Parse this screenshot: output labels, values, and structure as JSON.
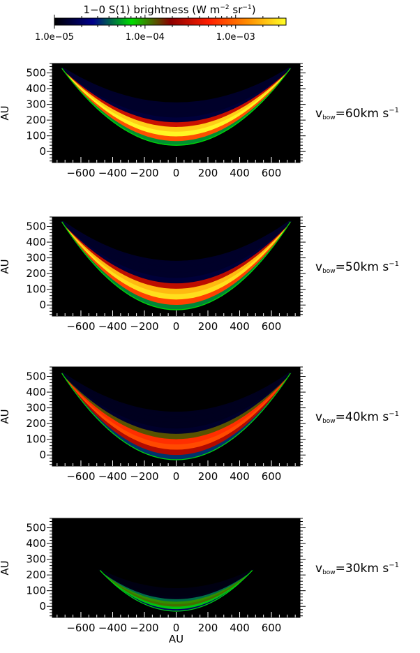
{
  "colorbar": {
    "title": "1−0 S(1) brightness (W m",
    "title_exp1": "−2",
    "title_mid": " sr",
    "title_exp2": "−1",
    "title_end": ")",
    "scale": "log",
    "range": [
      1e-05,
      0.0036
    ],
    "tick_labels": [
      "1.0e−05",
      "1.0e−04",
      "1.0e−03"
    ],
    "tick_values": [
      1e-05,
      0.0001,
      0.001
    ],
    "colors": [
      "#000000",
      "#00008c",
      "#00dc00",
      "#8c0000",
      "#ff1e00",
      "#ff8c00",
      "#ffff28"
    ]
  },
  "chart_data": [
    {
      "type": "heatmap",
      "title": "",
      "xlabel": "",
      "ylabel": "AU",
      "xlim": [
        -780,
        780
      ],
      "ylim": [
        -70,
        560
      ],
      "x_ticks": [
        -600,
        -400,
        -200,
        0,
        200,
        400,
        600
      ],
      "y_ticks": [
        0,
        100,
        200,
        300,
        400,
        500
      ],
      "label_prefix": "v",
      "label_sub": "bow",
      "label_value": "=60km  s",
      "label_exp": "−1",
      "bow": {
        "x_half_width": 720,
        "y_apex": 40,
        "y_top": 530
      },
      "peak_brightness": 0.0036
    },
    {
      "type": "heatmap",
      "title": "",
      "xlabel": "",
      "ylabel": "AU",
      "xlim": [
        -780,
        780
      ],
      "ylim": [
        -70,
        560
      ],
      "x_ticks": [
        -600,
        -400,
        -200,
        0,
        200,
        400,
        600
      ],
      "y_ticks": [
        0,
        100,
        200,
        300,
        400,
        500
      ],
      "label_prefix": "v",
      "label_sub": "bow",
      "label_value": "=50km  s",
      "label_exp": "−1",
      "bow": {
        "x_half_width": 720,
        "y_apex": -30,
        "y_top": 530
      },
      "peak_brightness": 0.003
    },
    {
      "type": "heatmap",
      "title": "",
      "xlabel": "",
      "ylabel": "AU",
      "xlim": [
        -780,
        780
      ],
      "ylim": [
        -70,
        560
      ],
      "x_ticks": [
        -600,
        -400,
        -200,
        0,
        200,
        400,
        600
      ],
      "y_ticks": [
        0,
        100,
        200,
        300,
        400,
        500
      ],
      "label_prefix": "v",
      "label_sub": "bow",
      "label_value": "=40km  s",
      "label_exp": "−1",
      "bow": {
        "x_half_width": 720,
        "y_apex": -30,
        "y_top": 520
      },
      "peak_brightness": 0.0008
    },
    {
      "type": "heatmap",
      "title": "",
      "xlabel": "AU",
      "ylabel": "AU",
      "xlim": [
        -780,
        780
      ],
      "ylim": [
        -70,
        560
      ],
      "x_ticks": [
        -600,
        -400,
        -200,
        0,
        200,
        400,
        600
      ],
      "y_ticks": [
        0,
        100,
        200,
        300,
        400,
        500
      ],
      "label_prefix": "v",
      "label_sub": "bow",
      "label_value": "=30km  s",
      "label_exp": "−1",
      "bow": {
        "x_half_width": 480,
        "y_apex": -30,
        "y_top": 230
      },
      "peak_brightness": 0.00012
    }
  ]
}
